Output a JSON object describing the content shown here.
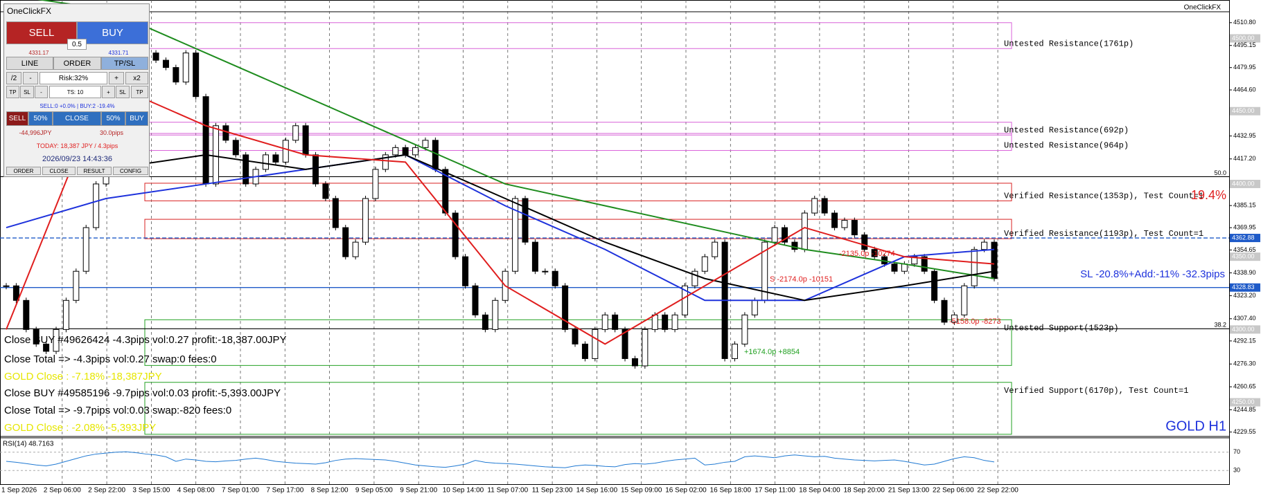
{
  "panel": {
    "title": "OneClickFX",
    "sell": "SELL",
    "buy": "BUY",
    "lot": "0.5",
    "bid": "4331.17",
    "ask": "4331.71",
    "tabs": [
      "LINE",
      "ORDER",
      "TP/SL"
    ],
    "risk_row": [
      "/2",
      "-",
      "Risk:32%",
      "+",
      "x2"
    ],
    "ts_row": [
      "TP",
      "SL",
      "-",
      "TS: 10",
      "+",
      "SL",
      "TP"
    ],
    "positions": "SELL:0 +0.0% | BUY:2 -19.4%",
    "close_row": [
      "SELL",
      "50%",
      "CLOSE",
      "50%",
      "BUY"
    ],
    "profit": "-44,996JPY",
    "pips": "30.0pips",
    "today": "TODAY: 18,387 JPY / 4.3pips",
    "clock": "2026/09/23  14:43:36",
    "footer": [
      "ORDER",
      "CLOSE",
      "RESULT",
      "CONFIG"
    ]
  },
  "chart_data": {
    "type": "candlestick",
    "watermark": "OneClickFX",
    "symbol_label": "GOLD H1",
    "sl_note": "SL -20.8%+Add:-11% -32.3pips",
    "percent_note": "19.4%",
    "ylim": [
      4227,
      4524
    ],
    "yticks": [
      {
        "value": 4510.8,
        "label": "4510.80"
      },
      {
        "value": 4495.15,
        "label": "4495.15"
      },
      {
        "value": 4479.95,
        "label": "4479.95"
      },
      {
        "value": 4464.6,
        "label": "4464.60"
      },
      {
        "value": 4432.95,
        "label": "4432.95"
      },
      {
        "value": 4417.2,
        "label": "4417.20"
      },
      {
        "value": 4385.15,
        "label": "4385.15"
      },
      {
        "value": 4369.95,
        "label": "4369.95"
      },
      {
        "value": 4354.65,
        "label": "4354.65"
      },
      {
        "value": 4338.9,
        "label": "4338.90"
      },
      {
        "value": 4323.2,
        "label": "4323.20"
      },
      {
        "value": 4307.4,
        "label": "4307.40"
      },
      {
        "value": 4292.15,
        "label": "4292.15"
      },
      {
        "value": 4276.3,
        "label": "4276.30"
      },
      {
        "value": 4260.65,
        "label": "4260.65"
      },
      {
        "value": 4244.85,
        "label": "4244.85"
      },
      {
        "value": 4229.55,
        "label": "4229.55"
      }
    ],
    "price_markers": [
      {
        "value": 4500,
        "label": "4500.00",
        "color": "#c8c8c8"
      },
      {
        "value": 4450,
        "label": "4450.00",
        "color": "#c8c8c8"
      },
      {
        "value": 4400,
        "label": "4400.00",
        "color": "#c8c8c8"
      },
      {
        "value": 4362.88,
        "label": "4362.88",
        "color": "#1e5ac8"
      },
      {
        "value": 4350,
        "label": "4350.00",
        "color": "#c8c8c8"
      },
      {
        "value": 4328.83,
        "label": "4328.83",
        "color": "#1e5ac8"
      },
      {
        "value": 4300,
        "label": "4300.00",
        "color": "#c8c8c8"
      },
      {
        "value": 4250,
        "label": "4250.00",
        "color": "#c8c8c8"
      }
    ],
    "x_labels": [
      "1 Sep 2026",
      "2 Sep 06:00",
      "2 Sep 22:00",
      "3 Sep 15:00",
      "4 Sep 08:00",
      "7 Sep 01:00",
      "7 Sep 17:00",
      "8 Sep 12:00",
      "9 Sep 05:00",
      "9 Sep 21:00",
      "10 Sep 14:00",
      "11 Sep 07:00",
      "11 Sep 23:00",
      "14 Sep 16:00",
      "15 Sep 09:00",
      "16 Sep 02:00",
      "16 Sep 18:00",
      "17 Sep 11:00",
      "18 Sep 04:00",
      "18 Sep 20:00",
      "21 Sep 13:00",
      "22 Sep 06:00",
      "22 Sep 22:00"
    ],
    "grid": true,
    "closes": [
      4330,
      4320,
      4300,
      4290,
      4285,
      4300,
      4320,
      4340,
      4370,
      4400,
      4430,
      4460,
      4470,
      4480,
      4490,
      4485,
      4480,
      4470,
      4490,
      4460,
      4400,
      4440,
      4430,
      4420,
      4400,
      4410,
      4420,
      4415,
      4430,
      4440,
      4420,
      4400,
      4390,
      4370,
      4350,
      4360,
      4390,
      4410,
      4420,
      4425,
      4420,
      4425,
      4430,
      4410,
      4380,
      4350,
      4330,
      4310,
      4300,
      4320,
      4340,
      4390,
      4360,
      4340,
      4340,
      4330,
      4300,
      4290,
      4280,
      4300,
      4310,
      4300,
      4280,
      4275,
      4300,
      4310,
      4300,
      4310,
      4330,
      4340,
      4350,
      4360,
      4280,
      4290,
      4310,
      4320,
      4360,
      4370,
      4360,
      4355,
      4380,
      4390,
      4380,
      4370,
      4375,
      4365,
      4355,
      4350,
      4345,
      4340,
      4345,
      4350,
      4340,
      4320,
      4305,
      4310,
      4330,
      4355,
      4360,
      4335
    ],
    "ma_lines": [
      {
        "color": "#1e8c1e",
        "x": [
          0,
          10,
          20,
          30,
          40,
          50,
          60,
          70,
          80,
          90,
          99
        ],
        "values": [
          4530,
          4520,
          4490,
          4460,
          4430,
          4400,
          4385,
          4370,
          4355,
          4345,
          4335
        ]
      },
      {
        "color": "#1e32dc",
        "x": [
          0,
          10,
          20,
          30,
          40,
          50,
          60,
          70,
          80,
          90,
          99
        ],
        "values": [
          4370,
          4390,
          4400,
          4410,
          4420,
          4385,
          4355,
          4320,
          4320,
          4350,
          4355
        ]
      },
      {
        "color": "#000000",
        "x": [
          0,
          10,
          20,
          30,
          40,
          50,
          60,
          70,
          80,
          90,
          99
        ],
        "values": [
          4440,
          4410,
          4420,
          4410,
          4420,
          4390,
          4360,
          4335,
          4320,
          4330,
          4340
        ]
      },
      {
        "color": "#e01e1e",
        "x": [
          0,
          10,
          20,
          30,
          40,
          50,
          60,
          70,
          80,
          90,
          99
        ],
        "values": [
          4300,
          4470,
          4440,
          4420,
          4415,
          4330,
          4290,
          4330,
          4370,
          4350,
          4345
        ]
      }
    ],
    "zones": [
      {
        "label": "Untested Resistance(1761p)",
        "top": 4510.8,
        "bottom": 4493,
        "color": "#d860d8",
        "kind": "resistance"
      },
      {
        "label": "Untested Resistance(692p)",
        "top": 4442.4,
        "bottom": 4433.6,
        "color": "#d860d8",
        "kind": "resistance"
      },
      {
        "label": "Untested Resistance(964p)",
        "top": 4434.7,
        "bottom": 4423,
        "color": "#d860d8",
        "kind": "resistance"
      },
      {
        "label": "Verified Resistance(1353p), Test Count=1",
        "top": 4400.5,
        "bottom": 4388.4,
        "color": "#d82020",
        "kind": "resistance"
      },
      {
        "label": "Verified Resistance(1193p), Test Count=1",
        "top": 4375.7,
        "bottom": 4362.4,
        "color": "#d82020",
        "kind": "resistance"
      },
      {
        "label": "Untested Support(1523p)",
        "top": 4306.7,
        "bottom": 4275.3,
        "color": "#20a020",
        "kind": "support"
      },
      {
        "label": "Verified Support(6170p), Test Count=1",
        "top": 4263.7,
        "bottom": 4228,
        "color": "#20a020",
        "kind": "support"
      }
    ],
    "levels": [
      {
        "label": "50.0",
        "price": 4405
      },
      {
        "label": "38.2",
        "price": 4300.5
      }
    ],
    "trade_notes": [
      "S -2174.0p -10151",
      "-2135.0p -10274",
      "+1674.0p +8854",
      "-5158.0p -8273"
    ],
    "messages": [
      "Close BUY #49626424 -4.3pips vol:0.27 profit:-18,387.00JPY",
      "Close Total => -4.3pips vol:0.27 swap:0 fees:0",
      "GOLD Close : -7.18% -18,387JPY",
      "Close BUY #49585196 -9.7pips vol:0.03 profit:-5,393.00JPY",
      "Close Total => -9.7pips vol:0.03 swap:-820 fees:0",
      "GOLD Close : -2.08% -5,393JPY"
    ],
    "rsi": {
      "label": "RSI(14) 48.7163",
      "color": "#1e78d2",
      "ylim": [
        0,
        100
      ],
      "yticks": [
        70,
        30
      ],
      "values": [
        50,
        48,
        45,
        42,
        40,
        44,
        50,
        56,
        62,
        66,
        68,
        70,
        71,
        69,
        66,
        64,
        60,
        50,
        55,
        53,
        50,
        49,
        51,
        52,
        55,
        57,
        54,
        50,
        48,
        46,
        45,
        44,
        47,
        52,
        55,
        56,
        55,
        54,
        53,
        50,
        46,
        42,
        40,
        38,
        37,
        40,
        44,
        52,
        48,
        46,
        45,
        44,
        42,
        40,
        38,
        37,
        36,
        40,
        42,
        41,
        39,
        38,
        43,
        45,
        44,
        46,
        50,
        53,
        55,
        57,
        42,
        44,
        48,
        50,
        60,
        62,
        60,
        58,
        62,
        64,
        62,
        60,
        61,
        57,
        55,
        53,
        52,
        51,
        52,
        53,
        50,
        46,
        42,
        44,
        50,
        56,
        60,
        58,
        52,
        48.7
      ]
    }
  }
}
